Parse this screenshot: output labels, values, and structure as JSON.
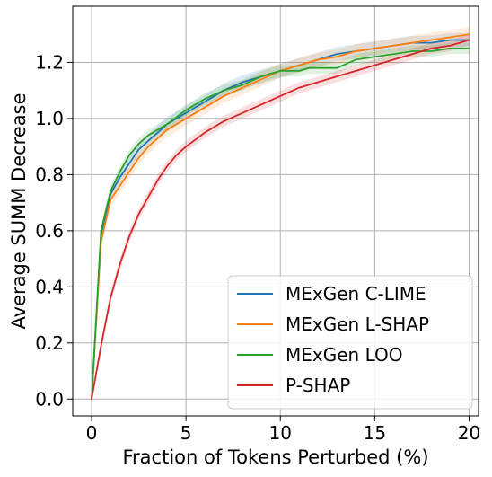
{
  "chart_data": {
    "type": "line",
    "title": "",
    "xlabel": "Fraction of Tokens Perturbed (%)",
    "ylabel": "Average SUMM Decrease",
    "xlim": [
      -1,
      20.5
    ],
    "ylim": [
      -0.06,
      1.4
    ],
    "xticks": [
      0,
      5,
      10,
      15,
      20
    ],
    "xtick_labels": [
      "0",
      "5",
      "10",
      "15",
      "20"
    ],
    "yticks": [
      0.0,
      0.2,
      0.4,
      0.6,
      0.8,
      1.0,
      1.2
    ],
    "ytick_labels": [
      "0.0",
      "0.2",
      "0.4",
      "0.6",
      "0.8",
      "1.0",
      "1.2"
    ],
    "grid": true,
    "legend_position": "bottom-right",
    "series": [
      {
        "name": "MExGen C-LIME",
        "color": "#1f77b4",
        "band": 0.025,
        "x": [
          0,
          0.5,
          1,
          1.5,
          2,
          2.5,
          3,
          3.5,
          4,
          5,
          6,
          7,
          8,
          9,
          10,
          11,
          12,
          13,
          14,
          15,
          16,
          17,
          18,
          19,
          20
        ],
        "y": [
          0.0,
          0.58,
          0.73,
          0.79,
          0.84,
          0.89,
          0.92,
          0.95,
          0.98,
          1.02,
          1.06,
          1.1,
          1.13,
          1.15,
          1.17,
          1.19,
          1.21,
          1.23,
          1.24,
          1.25,
          1.26,
          1.27,
          1.27,
          1.28,
          1.28
        ]
      },
      {
        "name": "MExGen L-SHAP",
        "color": "#ff7f0e",
        "band": 0.025,
        "x": [
          0,
          0.5,
          1,
          1.5,
          2,
          2.5,
          3,
          3.5,
          4,
          5,
          6,
          7,
          8,
          9,
          10,
          11,
          12,
          13,
          14,
          15,
          16,
          17,
          18,
          19,
          20
        ],
        "y": [
          0.0,
          0.56,
          0.71,
          0.76,
          0.81,
          0.86,
          0.9,
          0.93,
          0.96,
          1.0,
          1.04,
          1.08,
          1.11,
          1.14,
          1.17,
          1.19,
          1.21,
          1.22,
          1.24,
          1.25,
          1.26,
          1.27,
          1.28,
          1.29,
          1.3
        ]
      },
      {
        "name": "MExGen LOO",
        "color": "#2ca02c",
        "band": 0.02,
        "x": [
          0,
          0.5,
          1,
          1.5,
          2,
          2.5,
          3,
          3.5,
          4,
          5,
          6,
          7,
          8,
          9,
          10,
          11,
          11.5,
          12,
          12.5,
          13,
          14,
          15,
          16,
          17,
          18,
          19,
          20
        ],
        "y": [
          0.0,
          0.6,
          0.74,
          0.81,
          0.87,
          0.91,
          0.94,
          0.96,
          0.98,
          1.03,
          1.07,
          1.1,
          1.12,
          1.15,
          1.17,
          1.17,
          1.18,
          1.18,
          1.18,
          1.18,
          1.21,
          1.22,
          1.23,
          1.24,
          1.24,
          1.25,
          1.25
        ]
      },
      {
        "name": "P-SHAP",
        "color": "#d62728",
        "band": 0.02,
        "x": [
          0,
          0.5,
          1,
          1.5,
          2,
          2.5,
          3,
          3.5,
          4,
          4.5,
          5,
          6,
          7,
          8,
          9,
          10,
          11,
          12,
          13,
          14,
          15,
          16,
          17,
          18,
          19,
          20
        ],
        "y": [
          0.0,
          0.19,
          0.36,
          0.48,
          0.58,
          0.66,
          0.72,
          0.78,
          0.83,
          0.87,
          0.9,
          0.95,
          0.99,
          1.02,
          1.05,
          1.08,
          1.11,
          1.13,
          1.15,
          1.17,
          1.19,
          1.21,
          1.23,
          1.25,
          1.26,
          1.28
        ]
      }
    ]
  }
}
